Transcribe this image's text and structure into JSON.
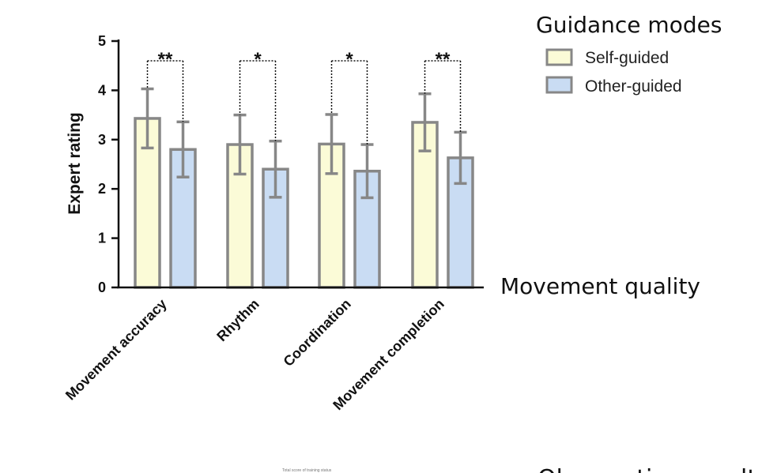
{
  "chart_data": {
    "type": "bar",
    "categories": [
      "Movement accuracy",
      "Rhythm",
      "Coordination",
      "Movement completion"
    ],
    "series": [
      {
        "name": "Self-guided",
        "color": "#fbfbd7",
        "values": [
          3.43,
          2.9,
          2.91,
          3.35
        ],
        "errors": [
          0.6,
          0.6,
          0.6,
          0.58
        ]
      },
      {
        "name": "Other-guided",
        "color": "#c9dcf3",
        "values": [
          2.8,
          2.4,
          2.36,
          2.63
        ],
        "errors": [
          0.56,
          0.57,
          0.54,
          0.52
        ]
      }
    ],
    "significance": [
      "**",
      "*",
      "*",
      "**"
    ],
    "ylabel": "Expert rating",
    "xlabel": "Movement quality",
    "ylim": [
      0,
      5
    ],
    "yticks": [
      "0",
      "1",
      "2",
      "3",
      "4",
      "5"
    ],
    "legend_title": "Guidance modes",
    "legend_position": "top-right",
    "grid": false,
    "bar_edge_color": "#878787"
  },
  "footnote_small": "Total score of training status",
  "footnote_cut": "Observation results"
}
